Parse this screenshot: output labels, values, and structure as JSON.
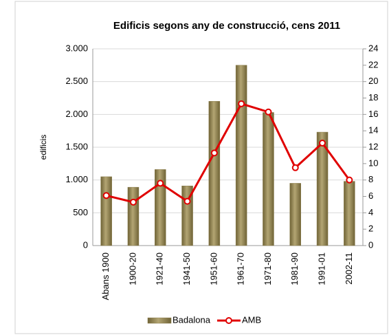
{
  "chart_data": {
    "type": "bar_line",
    "title": "Edificis segons any de construcció, cens 2011",
    "ylabel": "edificis",
    "categories": [
      "Abans 1900",
      "1900-20",
      "1921-40",
      "1941-50",
      "1951-60",
      "1961-70",
      "1971-80",
      "1981-90",
      "1991-01",
      "2002-11"
    ],
    "series": [
      {
        "name": "Badalona",
        "type": "bar",
        "color": "#8b7d4b",
        "values": [
          1050,
          890,
          1160,
          910,
          2200,
          2750,
          2030,
          950,
          1730,
          980
        ]
      },
      {
        "name": "AMB",
        "type": "line",
        "axis": "y2",
        "color": "#e00000",
        "values": [
          6.1,
          5.3,
          7.6,
          5.4,
          11.3,
          17.3,
          16.3,
          9.5,
          12.5,
          8.0
        ]
      }
    ],
    "ylim": [
      0,
      3000
    ],
    "yticks": [
      0,
      500,
      {
        "value": 1000,
        "label": "1.000"
      },
      {
        "value": 1500,
        "label": "1.500"
      },
      {
        "value": 2000,
        "label": "2.000"
      },
      {
        "value": 2500,
        "label": "2.500"
      },
      {
        "value": 3000,
        "label": "3.000"
      }
    ],
    "y2lim": [
      0,
      24
    ],
    "y2ticks": [
      0,
      2,
      4,
      6,
      8,
      10,
      12,
      14,
      16,
      18,
      20,
      22,
      24
    ],
    "legend": "bottom"
  }
}
